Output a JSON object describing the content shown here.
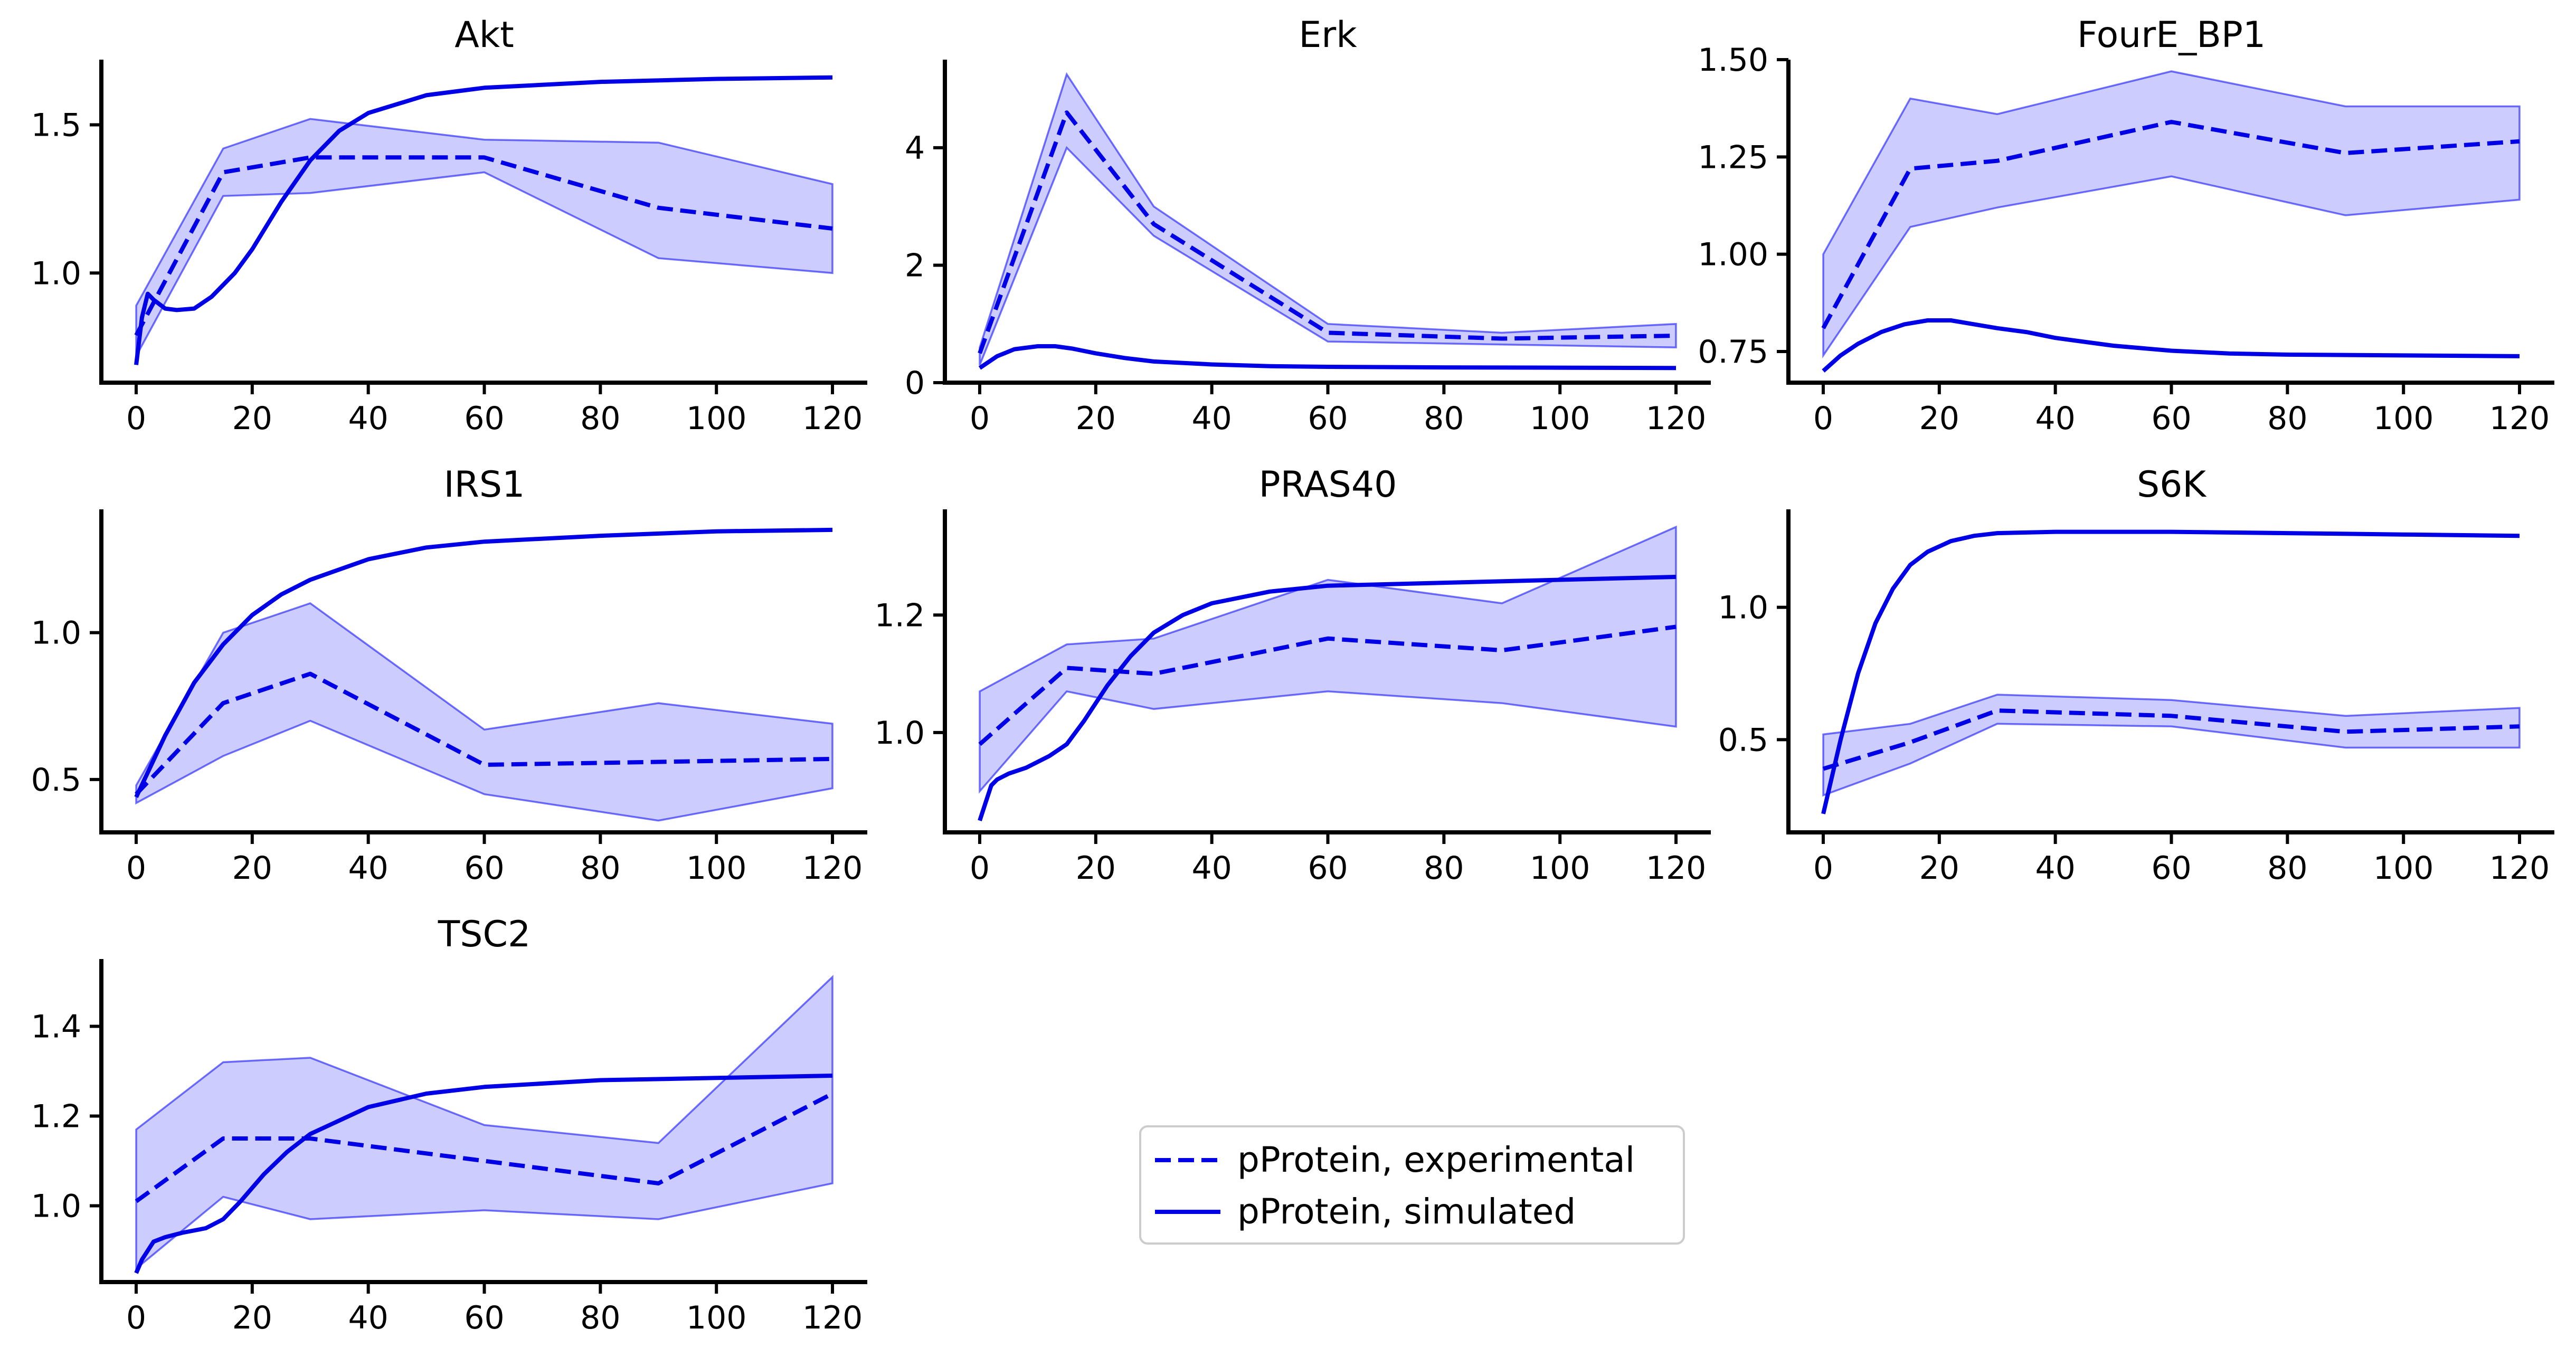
{
  "colors": {
    "line": "#0000e6",
    "band": "#0000ff",
    "axis": "#000000",
    "legend_border": "#cccccc"
  },
  "legend": {
    "placement": "bottom-center",
    "entries": [
      {
        "label": "pProtein, experimental",
        "style": "dashed"
      },
      {
        "label": "pProtein, simulated",
        "style": "solid"
      }
    ]
  },
  "chart_data": [
    {
      "type": "line",
      "title": "Akt",
      "xlabel": "",
      "ylabel": "",
      "xlim": [
        -6,
        126
      ],
      "ylim": [
        0.63,
        1.72
      ],
      "xticks": [
        0,
        20,
        40,
        60,
        80,
        100,
        120
      ],
      "xtick_labels": [
        "0",
        "20",
        "40",
        "60",
        "80",
        "100",
        "120"
      ],
      "yticks": [
        1.0,
        1.5
      ],
      "ytick_labels": [
        "1.0",
        "1.5"
      ],
      "series": [
        {
          "name": "pProtein, experimental",
          "style": "dashed",
          "x": [
            0,
            15,
            30,
            60,
            90,
            120
          ],
          "y": [
            0.79,
            1.34,
            1.39,
            1.39,
            1.22,
            1.15
          ],
          "lower": [
            0.72,
            1.26,
            1.27,
            1.34,
            1.05,
            1.0
          ],
          "upper": [
            0.89,
            1.42,
            1.52,
            1.45,
            1.44,
            1.3
          ]
        },
        {
          "name": "pProtein, simulated",
          "style": "solid",
          "x": [
            0,
            1,
            2,
            3,
            5,
            7,
            10,
            13,
            17,
            20,
            25,
            30,
            35,
            40,
            50,
            60,
            80,
            100,
            120
          ],
          "y": [
            0.69,
            0.85,
            0.93,
            0.91,
            0.88,
            0.875,
            0.88,
            0.92,
            1.0,
            1.08,
            1.24,
            1.38,
            1.48,
            1.54,
            1.6,
            1.625,
            1.645,
            1.655,
            1.66
          ]
        }
      ]
    },
    {
      "type": "line",
      "title": "Erk",
      "xlabel": "",
      "ylabel": "",
      "xlim": [
        -6,
        126
      ],
      "ylim": [
        0,
        5.5
      ],
      "xticks": [
        0,
        20,
        40,
        60,
        80,
        100,
        120
      ],
      "xtick_labels": [
        "0",
        "20",
        "40",
        "60",
        "80",
        "100",
        "120"
      ],
      "yticks": [
        0,
        2,
        4
      ],
      "ytick_labels": [
        "0",
        "2",
        "4"
      ],
      "series": [
        {
          "name": "pProtein, experimental",
          "style": "dashed",
          "x": [
            0,
            15,
            30,
            60,
            90,
            120
          ],
          "y": [
            0.5,
            4.6,
            2.7,
            0.85,
            0.75,
            0.8
          ],
          "lower": [
            0.3,
            4.0,
            2.5,
            0.7,
            0.65,
            0.6
          ],
          "upper": [
            0.6,
            5.25,
            3.0,
            1.0,
            0.85,
            1.0
          ]
        },
        {
          "name": "pProtein, simulated",
          "style": "solid",
          "x": [
            0,
            3,
            6,
            10,
            13,
            16,
            20,
            25,
            30,
            40,
            50,
            60,
            80,
            100,
            120
          ],
          "y": [
            0.25,
            0.45,
            0.57,
            0.62,
            0.62,
            0.58,
            0.5,
            0.42,
            0.36,
            0.31,
            0.28,
            0.27,
            0.26,
            0.255,
            0.25
          ]
        }
      ]
    },
    {
      "type": "line",
      "title": "FourE_BP1",
      "xlabel": "",
      "ylabel": "",
      "xlim": [
        -6,
        126
      ],
      "ylim": [
        0.67,
        1.5
      ],
      "xticks": [
        0,
        20,
        40,
        60,
        80,
        100,
        120
      ],
      "xtick_labels": [
        "0",
        "20",
        "40",
        "60",
        "80",
        "100",
        "120"
      ],
      "yticks": [
        0.75,
        1.0,
        1.25,
        1.5
      ],
      "ytick_labels": [
        "0.75",
        "1.00",
        "1.25",
        "1.50"
      ],
      "series": [
        {
          "name": "pProtein, experimental",
          "style": "dashed",
          "x": [
            0,
            15,
            30,
            60,
            90,
            120
          ],
          "y": [
            0.81,
            1.22,
            1.24,
            1.34,
            1.26,
            1.29
          ],
          "lower": [
            0.74,
            1.07,
            1.12,
            1.2,
            1.1,
            1.14
          ],
          "upper": [
            1.0,
            1.4,
            1.36,
            1.47,
            1.38,
            1.38
          ]
        },
        {
          "name": "pProtein, simulated",
          "style": "solid",
          "x": [
            0,
            3,
            6,
            10,
            14,
            18,
            22,
            26,
            30,
            35,
            40,
            50,
            60,
            70,
            80,
            100,
            120
          ],
          "y": [
            0.7,
            0.74,
            0.77,
            0.8,
            0.82,
            0.83,
            0.83,
            0.82,
            0.81,
            0.8,
            0.785,
            0.765,
            0.752,
            0.745,
            0.742,
            0.74,
            0.738
          ]
        }
      ]
    },
    {
      "type": "line",
      "title": "IRS1",
      "xlabel": "",
      "ylabel": "",
      "xlim": [
        -6,
        126
      ],
      "ylim": [
        0.32,
        1.42
      ],
      "xticks": [
        0,
        20,
        40,
        60,
        80,
        100,
        120
      ],
      "xtick_labels": [
        "0",
        "20",
        "40",
        "60",
        "80",
        "100",
        "120"
      ],
      "yticks": [
        0.5,
        1.0
      ],
      "ytick_labels": [
        "0.5",
        "1.0"
      ],
      "series": [
        {
          "name": "pProtein, experimental",
          "style": "dashed",
          "x": [
            0,
            15,
            30,
            60,
            90,
            120
          ],
          "y": [
            0.45,
            0.76,
            0.86,
            0.55,
            0.56,
            0.57
          ],
          "lower": [
            0.42,
            0.58,
            0.7,
            0.45,
            0.36,
            0.47
          ],
          "upper": [
            0.48,
            1.0,
            1.1,
            0.67,
            0.76,
            0.69
          ]
        },
        {
          "name": "pProtein, simulated",
          "style": "solid",
          "x": [
            0,
            5,
            10,
            15,
            20,
            25,
            30,
            40,
            50,
            60,
            80,
            100,
            120
          ],
          "y": [
            0.44,
            0.65,
            0.83,
            0.96,
            1.06,
            1.13,
            1.18,
            1.25,
            1.29,
            1.31,
            1.33,
            1.345,
            1.35
          ]
        }
      ]
    },
    {
      "type": "line",
      "title": "PRAS40",
      "xlabel": "",
      "ylabel": "",
      "xlim": [
        -6,
        126
      ],
      "ylim": [
        0.83,
        1.38
      ],
      "xticks": [
        0,
        20,
        40,
        60,
        80,
        100,
        120
      ],
      "xtick_labels": [
        "0",
        "20",
        "40",
        "60",
        "80",
        "100",
        "120"
      ],
      "yticks": [
        1.0,
        1.2
      ],
      "ytick_labels": [
        "1.0",
        "1.2"
      ],
      "series": [
        {
          "name": "pProtein, experimental",
          "style": "dashed",
          "x": [
            0,
            15,
            30,
            60,
            90,
            120
          ],
          "y": [
            0.98,
            1.11,
            1.1,
            1.16,
            1.14,
            1.18
          ],
          "lower": [
            0.9,
            1.07,
            1.04,
            1.07,
            1.05,
            1.01
          ],
          "upper": [
            1.07,
            1.15,
            1.16,
            1.26,
            1.22,
            1.35
          ]
        },
        {
          "name": "pProtein, simulated",
          "style": "solid",
          "x": [
            0,
            1,
            2,
            3,
            5,
            8,
            12,
            15,
            18,
            22,
            26,
            30,
            35,
            40,
            50,
            60,
            80,
            100,
            120
          ],
          "y": [
            0.85,
            0.88,
            0.91,
            0.92,
            0.93,
            0.94,
            0.96,
            0.98,
            1.02,
            1.08,
            1.13,
            1.17,
            1.2,
            1.22,
            1.24,
            1.25,
            1.255,
            1.26,
            1.265
          ]
        }
      ]
    },
    {
      "type": "line",
      "title": "S6K",
      "xlabel": "",
      "ylabel": "",
      "xlim": [
        -6,
        126
      ],
      "ylim": [
        0.15,
        1.37
      ],
      "xticks": [
        0,
        20,
        40,
        60,
        80,
        100,
        120
      ],
      "xtick_labels": [
        "0",
        "20",
        "40",
        "60",
        "80",
        "100",
        "120"
      ],
      "yticks": [
        0.5,
        1.0
      ],
      "ytick_labels": [
        "0.5",
        "1.0"
      ],
      "series": [
        {
          "name": "pProtein, experimental",
          "style": "dashed",
          "x": [
            0,
            15,
            30,
            60,
            90,
            120
          ],
          "y": [
            0.39,
            0.49,
            0.61,
            0.59,
            0.53,
            0.55
          ],
          "lower": [
            0.29,
            0.41,
            0.56,
            0.55,
            0.47,
            0.47
          ],
          "upper": [
            0.52,
            0.56,
            0.67,
            0.65,
            0.59,
            0.62
          ]
        },
        {
          "name": "pProtein, simulated",
          "style": "solid",
          "x": [
            0,
            3,
            6,
            9,
            12,
            15,
            18,
            22,
            26,
            30,
            40,
            50,
            60,
            80,
            100,
            120
          ],
          "y": [
            0.22,
            0.5,
            0.75,
            0.94,
            1.07,
            1.16,
            1.21,
            1.25,
            1.27,
            1.28,
            1.285,
            1.285,
            1.285,
            1.28,
            1.275,
            1.27
          ]
        }
      ]
    },
    {
      "type": "line",
      "title": "TSC2",
      "xlabel": "",
      "ylabel": "",
      "xlim": [
        -6,
        126
      ],
      "ylim": [
        0.83,
        1.55
      ],
      "xticks": [
        0,
        20,
        40,
        60,
        80,
        100,
        120
      ],
      "xtick_labels": [
        "0",
        "20",
        "40",
        "60",
        "80",
        "100",
        "120"
      ],
      "yticks": [
        1.0,
        1.2,
        1.4
      ],
      "ytick_labels": [
        "1.0",
        "1.2",
        "1.4"
      ],
      "series": [
        {
          "name": "pProtein, experimental",
          "style": "dashed",
          "x": [
            0,
            15,
            30,
            60,
            90,
            120
          ],
          "y": [
            1.01,
            1.15,
            1.15,
            1.1,
            1.05,
            1.25
          ],
          "lower": [
            0.86,
            1.02,
            0.97,
            0.99,
            0.97,
            1.05
          ],
          "upper": [
            1.17,
            1.32,
            1.33,
            1.18,
            1.14,
            1.51
          ]
        },
        {
          "name": "pProtein, simulated",
          "style": "solid",
          "x": [
            0,
            1,
            2,
            3,
            5,
            8,
            12,
            15,
            18,
            22,
            26,
            30,
            35,
            40,
            50,
            60,
            80,
            100,
            120
          ],
          "y": [
            0.85,
            0.88,
            0.9,
            0.92,
            0.93,
            0.94,
            0.95,
            0.97,
            1.01,
            1.07,
            1.12,
            1.16,
            1.19,
            1.22,
            1.25,
            1.265,
            1.28,
            1.285,
            1.29
          ]
        }
      ]
    }
  ]
}
